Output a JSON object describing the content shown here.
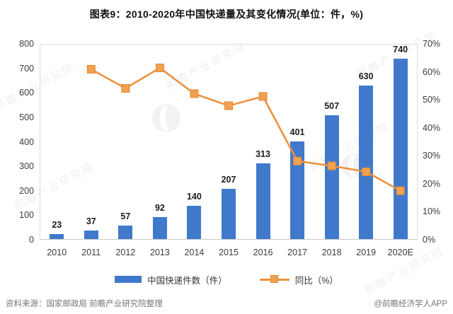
{
  "title": "图表9：2010-2020年中国快递量及其变化情况(单位：件，%)",
  "watermark": {
    "text": "前瞻产业研究院",
    "logo": "qianzhan-swoosh-logo"
  },
  "footer": {
    "source": "资料来源：国家邮政局 前瞻产业研究院整理",
    "credit": "@前瞻经济学人APP"
  },
  "colors": {
    "bar": "#4079CB",
    "line": "#ED9140",
    "marker_fill": "#F1A14F",
    "marker_stroke": "#E08A33",
    "axis_text": "#3c3c3c",
    "value_label": "#1c1c1c",
    "plot_border": "#dcdcdc",
    "footer_text": "#767676"
  },
  "chart_data": {
    "type": "bar",
    "subtype": "bar+line dual-axis",
    "title": "图表9：2010-2020年中国快递量及其变化情况(单位：件，%)",
    "categories": [
      "2010",
      "2011",
      "2012",
      "2013",
      "2014",
      "2015",
      "2016",
      "2017",
      "2018",
      "2019",
      "2020E"
    ],
    "series": [
      {
        "name": "中国快递件数（件）",
        "type": "bar",
        "axis": "left",
        "values": [
          23,
          37,
          57,
          92,
          140,
          207,
          313,
          401,
          507,
          630,
          740
        ]
      },
      {
        "name": "同比（%）",
        "type": "line",
        "axis": "right",
        "values": [
          null,
          60.9,
          54.1,
          61.4,
          52.2,
          47.9,
          51.2,
          28.1,
          26.4,
          24.3,
          17.5
        ]
      }
    ],
    "left_axis": {
      "min": 0,
      "max": 800,
      "step": 100,
      "suffix": ""
    },
    "right_axis": {
      "min": 0,
      "max": 70,
      "step": 10,
      "suffix": "%"
    },
    "grid": false,
    "legend_position": "bottom",
    "data_labels_on_bars": true
  }
}
